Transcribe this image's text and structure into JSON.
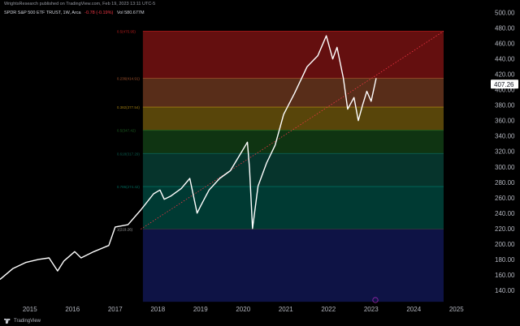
{
  "header": {
    "published_line": "WrightsResearch published on TradingView.com, Feb 19, 2023 13:11 UTC-5",
    "symbol": "SPDR S&P 500 ETF TRUST, 1W, Arca",
    "change": "-0.78 (-0.19%)",
    "volume": "Vol 580.677M"
  },
  "footer": {
    "brand": "TradingView"
  },
  "colors": {
    "background": "#000000",
    "price": "#ffffff",
    "trend_line": "#f23645",
    "last_price_label": "#ffffff"
  },
  "chart_data": {
    "type": "line",
    "title": "SPDR S&P 500 ETF TRUST, 1W, Arca",
    "xlabel": "",
    "ylabel": "",
    "x_ticks": [
      "2015",
      "2016",
      "2017",
      "2018",
      "2019",
      "2020",
      "2021",
      "2022",
      "2023",
      "2024",
      "2025"
    ],
    "xlim": [
      2014.3,
      2025.5
    ],
    "y_ticks": [
      140,
      160,
      180,
      200,
      220,
      240,
      260,
      280,
      300,
      320,
      340,
      360,
      380,
      400,
      420,
      440,
      460,
      480,
      500
    ],
    "ylim": [
      122,
      508
    ],
    "last_price": 407.26,
    "fib_levels": [
      {
        "ratio": "0.5",
        "label": "0.5(475.95)",
        "value": 475.95,
        "color": "#b71c1c"
      },
      {
        "ratio": "0.236",
        "label": "0.236(414.91)",
        "value": 414.91,
        "color": "#a0522d"
      },
      {
        "ratio": "0.382",
        "label": "0.382(377.54)",
        "value": 377.54,
        "color": "#a07d12"
      },
      {
        "ratio": "0.5",
        "label": "0.5(347.42)",
        "value": 347.42,
        "color": "#1b5e20"
      },
      {
        "ratio": "0.618",
        "label": "0.618(317.29)",
        "value": 317.29,
        "color": "#0b5e50"
      },
      {
        "ratio": "0.786",
        "label": "0.786(274.42)",
        "value": 274.42,
        "color": "#00695c"
      },
      {
        "ratio": "1",
        "label": "1(219.26)",
        "value": 219.26,
        "color": "#3a3a3a"
      }
    ],
    "fib_bottom": 125,
    "fib_x_range": [
      2017.65,
      2024.7
    ],
    "trend_line": {
      "x": [
        2017.6,
        2024.7
      ],
      "y": [
        219.26,
        476
      ]
    },
    "series": [
      {
        "values_x": [
          2014.3,
          2014.6,
          2014.9,
          2015.2,
          2015.45,
          2015.65,
          2015.8,
          2016.05,
          2016.2,
          2016.5,
          2016.85,
          2017.0,
          2017.3,
          2017.6,
          2017.9,
          2018.05,
          2018.15,
          2018.3,
          2018.55,
          2018.75,
          2018.92,
          2019.0,
          2019.2,
          2019.45,
          2019.7,
          2019.95,
          2020.1,
          2020.15,
          2020.22,
          2020.35,
          2020.55,
          2020.75,
          2020.95,
          2021.2,
          2021.5,
          2021.75,
          2021.95,
          2022.1,
          2022.2,
          2022.35,
          2022.45,
          2022.6,
          2022.7,
          2022.8,
          2022.9,
          2023.0,
          2023.12
        ],
        "values_y": [
          154,
          168,
          176,
          180,
          182,
          165,
          178,
          190,
          182,
          190,
          198,
          222,
          225,
          244,
          265,
          270,
          258,
          262,
          272,
          285,
          240,
          249,
          270,
          285,
          295,
          318,
          332,
          298,
          220,
          275,
          305,
          328,
          368,
          395,
          430,
          444,
          470,
          440,
          455,
          415,
          375,
          390,
          360,
          380,
          398,
          385,
          415
        ]
      }
    ]
  }
}
